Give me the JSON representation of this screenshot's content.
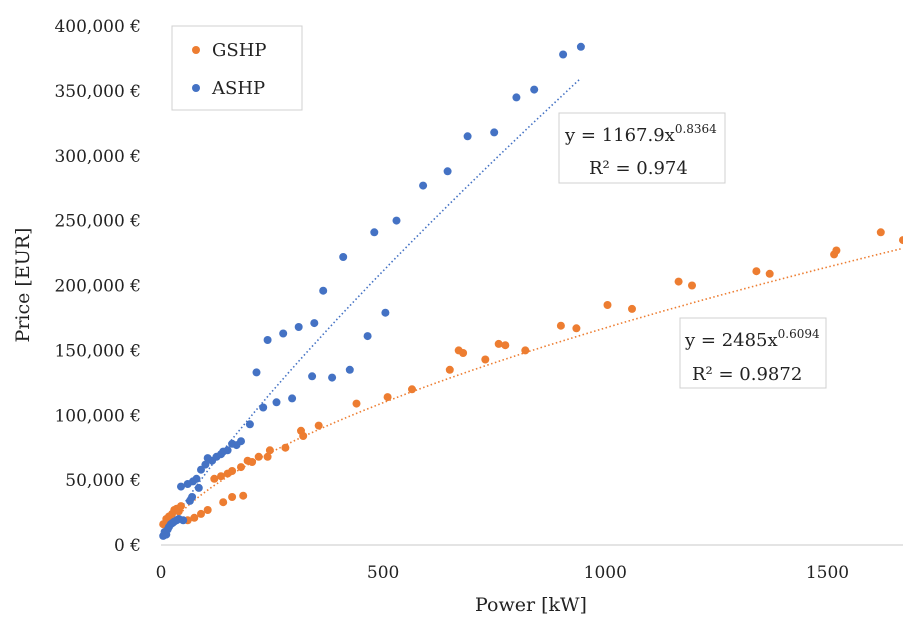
{
  "chart_data": {
    "type": "scatter",
    "xlabel": "Power [kW]",
    "ylabel": "Price [EUR]",
    "xlim": [
      0,
      1670
    ],
    "ylim": [
      0,
      400000
    ],
    "x_ticks": [
      0,
      500,
      1000,
      1500
    ],
    "x_tick_labels": [
      "0",
      "500",
      "1000",
      "1500"
    ],
    "y_ticks": [
      0,
      50000,
      100000,
      150000,
      200000,
      250000,
      300000,
      350000,
      400000
    ],
    "y_tick_labels": [
      "0 €",
      "50,000 €",
      "100,000 €",
      "150,000 €",
      "200,000 €",
      "250,000 €",
      "300,000 €",
      "350,000 €",
      "400,000 €"
    ],
    "grid": false,
    "legend_position": "top-left",
    "series": [
      {
        "name": "GSHP",
        "color": "#ED7D31",
        "trendline": {
          "type": "power",
          "a": 2485,
          "b": 0.6094,
          "x_range": [
            5,
            1670
          ],
          "equation": "y = 2485x",
          "exponent": "0.6094",
          "r2": "R² = 0.9872"
        },
        "points": [
          [
            5,
            16000
          ],
          [
            12,
            20000
          ],
          [
            18,
            22000
          ],
          [
            25,
            24000
          ],
          [
            30,
            27000
          ],
          [
            35,
            28000
          ],
          [
            40,
            26000
          ],
          [
            45,
            30000
          ],
          [
            20,
            17000
          ],
          [
            28,
            18000
          ],
          [
            60,
            19000
          ],
          [
            75,
            21000
          ],
          [
            90,
            24000
          ],
          [
            105,
            27000
          ],
          [
            140,
            33000
          ],
          [
            160,
            37000
          ],
          [
            185,
            38000
          ],
          [
            120,
            51000
          ],
          [
            135,
            53000
          ],
          [
            150,
            55000
          ],
          [
            160,
            57000
          ],
          [
            180,
            60000
          ],
          [
            195,
            65000
          ],
          [
            205,
            64000
          ],
          [
            220,
            68000
          ],
          [
            240,
            68000
          ],
          [
            245,
            73000
          ],
          [
            280,
            75000
          ],
          [
            315,
            88000
          ],
          [
            320,
            84000
          ],
          [
            355,
            92000
          ],
          [
            440,
            109000
          ],
          [
            510,
            114000
          ],
          [
            565,
            120000
          ],
          [
            650,
            135000
          ],
          [
            670,
            150000
          ],
          [
            680,
            148000
          ],
          [
            730,
            143000
          ],
          [
            760,
            155000
          ],
          [
            775,
            154000
          ],
          [
            820,
            150000
          ],
          [
            900,
            169000
          ],
          [
            935,
            167000
          ],
          [
            1005,
            185000
          ],
          [
            1060,
            182000
          ],
          [
            1165,
            203000
          ],
          [
            1195,
            200000
          ],
          [
            1340,
            211000
          ],
          [
            1370,
            209000
          ],
          [
            1515,
            224000
          ],
          [
            1520,
            227000
          ],
          [
            1620,
            241000
          ],
          [
            1670,
            235000
          ]
        ]
      },
      {
        "name": "ASHP",
        "color": "#4472C4",
        "trendline": {
          "type": "power",
          "a": 1167.9,
          "b": 0.8364,
          "x_range": [
            5,
            945
          ],
          "equation": "y = 1167.9x",
          "exponent": "0.8364",
          "r2": "R² = 0.974"
        },
        "points": [
          [
            5,
            7000
          ],
          [
            8,
            10000
          ],
          [
            12,
            8000
          ],
          [
            15,
            12000
          ],
          [
            18,
            14000
          ],
          [
            22,
            16000
          ],
          [
            26,
            17000
          ],
          [
            30,
            18000
          ],
          [
            35,
            19000
          ],
          [
            40,
            20000
          ],
          [
            45,
            45000
          ],
          [
            50,
            19000
          ],
          [
            60,
            47000
          ],
          [
            65,
            34000
          ],
          [
            70,
            37000
          ],
          [
            72,
            49000
          ],
          [
            80,
            51000
          ],
          [
            85,
            44000
          ],
          [
            90,
            58000
          ],
          [
            100,
            62000
          ],
          [
            105,
            67000
          ],
          [
            115,
            65000
          ],
          [
            125,
            68000
          ],
          [
            135,
            70000
          ],
          [
            140,
            72000
          ],
          [
            150,
            73000
          ],
          [
            160,
            78000
          ],
          [
            170,
            77000
          ],
          [
            180,
            80000
          ],
          [
            200,
            93000
          ],
          [
            215,
            133000
          ],
          [
            230,
            106000
          ],
          [
            240,
            158000
          ],
          [
            260,
            110000
          ],
          [
            275,
            163000
          ],
          [
            295,
            113000
          ],
          [
            310,
            168000
          ],
          [
            340,
            130000
          ],
          [
            345,
            171000
          ],
          [
            365,
            196000
          ],
          [
            385,
            129000
          ],
          [
            410,
            222000
          ],
          [
            425,
            135000
          ],
          [
            465,
            161000
          ],
          [
            480,
            241000
          ],
          [
            505,
            179000
          ],
          [
            530,
            250000
          ],
          [
            590,
            277000
          ],
          [
            645,
            288000
          ],
          [
            690,
            315000
          ],
          [
            750,
            318000
          ],
          [
            800,
            345000
          ],
          [
            840,
            351000
          ],
          [
            905,
            378000
          ],
          [
            945,
            384000
          ]
        ]
      }
    ]
  }
}
